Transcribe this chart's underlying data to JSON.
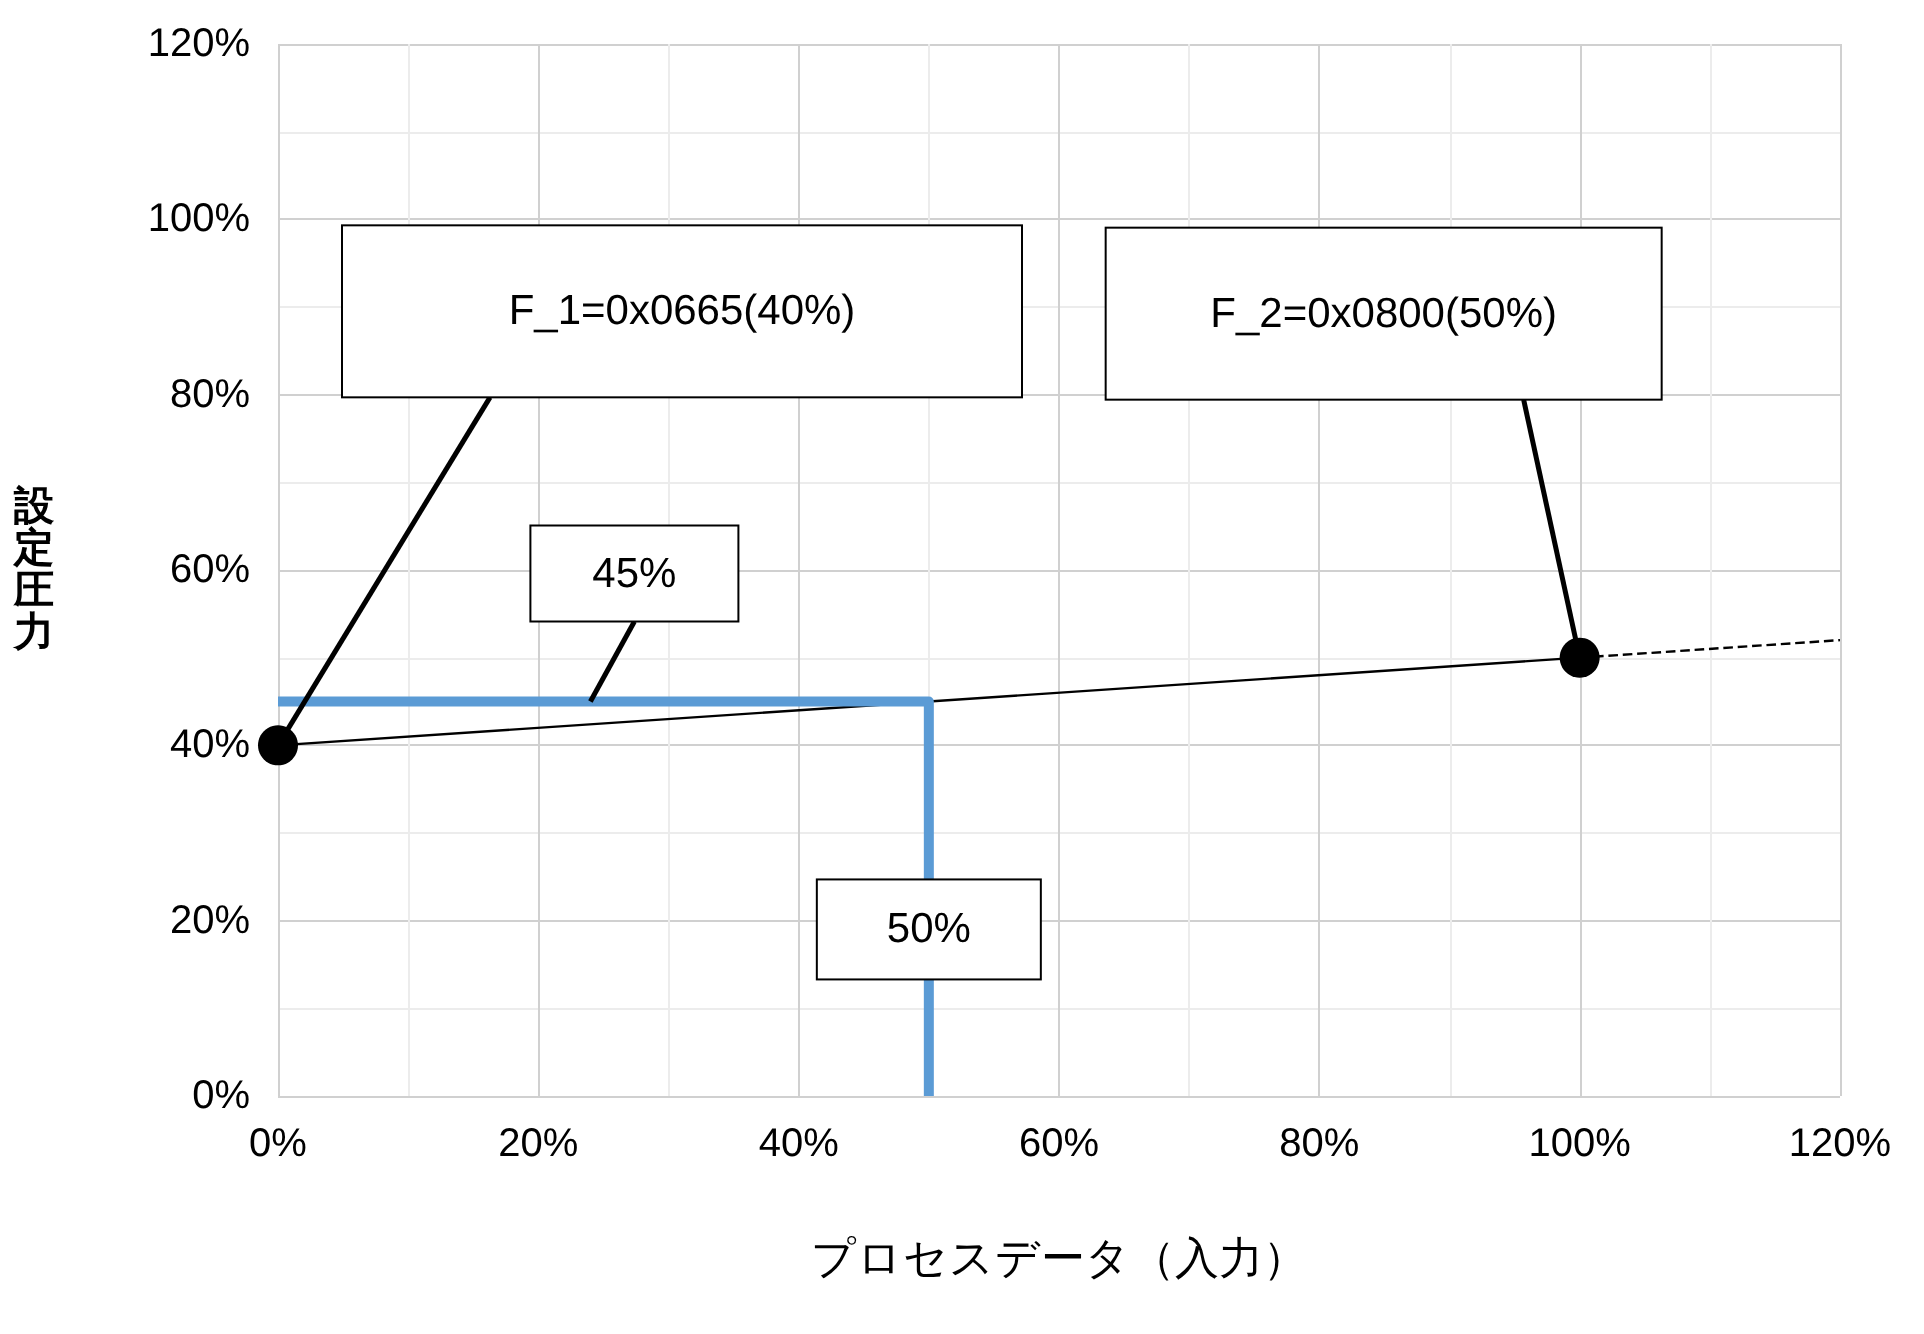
{
  "chart_data": {
    "type": "line",
    "xlabel": "プロセスデータ（入力）",
    "ylabel": "設定圧力",
    "xlim": [
      0,
      120
    ],
    "ylim": [
      0,
      120
    ],
    "xticks": [
      {
        "value": 0,
        "label": "0%"
      },
      {
        "value": 20,
        "label": "20%"
      },
      {
        "value": 40,
        "label": "40%"
      },
      {
        "value": 60,
        "label": "60%"
      },
      {
        "value": 80,
        "label": "80%"
      },
      {
        "value": 100,
        "label": "100%"
      },
      {
        "value": 120,
        "label": "120%"
      }
    ],
    "yticks": [
      {
        "value": 0,
        "label": "0%"
      },
      {
        "value": 20,
        "label": "20%"
      },
      {
        "value": 40,
        "label": "40%"
      },
      {
        "value": 60,
        "label": "60%"
      },
      {
        "value": 80,
        "label": "80%"
      },
      {
        "value": 100,
        "label": "100%"
      },
      {
        "value": 120,
        "label": "120%"
      }
    ],
    "grid": true,
    "series": [
      {
        "color": "#000000",
        "x": [
          0,
          100
        ],
        "values": [
          40,
          50
        ],
        "marker": "circle",
        "line_style": "solid"
      },
      {
        "color": "#000000",
        "x": [
          100,
          120
        ],
        "values": [
          50,
          52
        ],
        "marker": "none",
        "line_style": "dashed"
      },
      {
        "color": "#5b9bd5",
        "x": [
          0,
          50,
          50
        ],
        "values": [
          45,
          45,
          0
        ],
        "marker": "none",
        "line_style": "solid"
      }
    ],
    "annotations": [
      "F_1=0x0665(40%)",
      "F_2=0x0800(50%)",
      {
        "text": "45%",
        "x": 24,
        "y": 45
      },
      {
        "text": "50%",
        "x": 50,
        "y": 19
      }
    ]
  }
}
